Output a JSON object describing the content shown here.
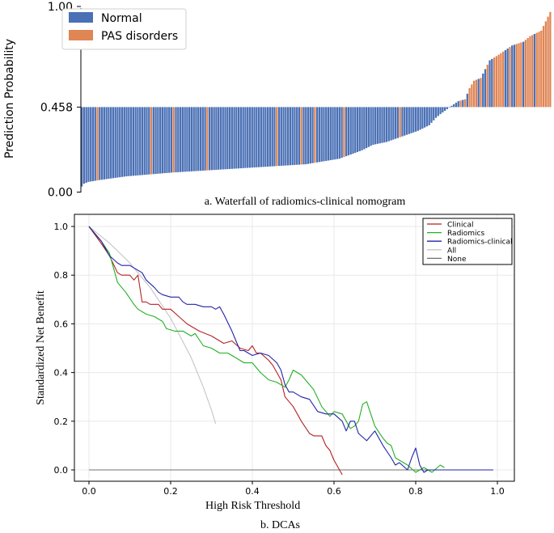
{
  "chart_data": [
    {
      "type": "bar",
      "subtype": "waterfall",
      "ylabel": "Prediction Probability",
      "baseline": 0.458,
      "ylim": [
        0.0,
        1.0
      ],
      "yticks": [
        "0.00",
        "0.458",
        "1.00"
      ],
      "caption": "a. Waterfall of radiomics-clinical nomogram",
      "legend": [
        {
          "label": "Normal",
          "color": "#4a70b5"
        },
        {
          "label": "PAS disorders",
          "color": "#e08554"
        }
      ],
      "legend_position": "top-left",
      "n_bars": 210,
      "anchors": [
        [
          0,
          0.03
        ],
        [
          1,
          0.045
        ],
        [
          3,
          0.055
        ],
        [
          8,
          0.065
        ],
        [
          20,
          0.085
        ],
        [
          40,
          0.105
        ],
        [
          60,
          0.12
        ],
        [
          80,
          0.135
        ],
        [
          100,
          0.15
        ],
        [
          115,
          0.18
        ],
        [
          125,
          0.225
        ],
        [
          130,
          0.255
        ],
        [
          136,
          0.27
        ],
        [
          143,
          0.3
        ],
        [
          150,
          0.33
        ],
        [
          155,
          0.36
        ],
        [
          158,
          0.4
        ],
        [
          160,
          0.42
        ],
        [
          163,
          0.447
        ],
        [
          165,
          0.465
        ],
        [
          168,
          0.49
        ],
        [
          171,
          0.5
        ],
        [
          173,
          0.56
        ],
        [
          175,
          0.6
        ],
        [
          178,
          0.615
        ],
        [
          182,
          0.71
        ],
        [
          186,
          0.74
        ],
        [
          192,
          0.79
        ],
        [
          197,
          0.81
        ],
        [
          200,
          0.84
        ],
        [
          205,
          0.87
        ],
        [
          209,
          0.97
        ]
      ],
      "pas_bars": [
        7,
        31,
        41,
        56,
        87,
        98,
        104,
        117,
        142,
        169,
        171,
        173,
        174,
        175,
        176,
        178,
        181,
        184,
        185,
        186,
        187,
        188,
        191,
        194,
        195,
        196,
        198,
        199,
        200,
        201,
        203,
        204,
        205,
        206,
        207,
        208,
        209
      ]
    },
    {
      "type": "line",
      "title": "",
      "xlabel": "High Risk Threshold",
      "ylabel": "Standardized Net Benefit",
      "xlim": [
        0.0,
        1.0
      ],
      "ylim": [
        0.0,
        1.0
      ],
      "xticks": [
        "0.0",
        "0.2",
        "0.4",
        "0.6",
        "0.8",
        "1.0"
      ],
      "yticks": [
        "0.0",
        "0.2",
        "0.4",
        "0.6",
        "0.8",
        "1.0"
      ],
      "caption": "b. DCAs",
      "legend_position": "top-right",
      "grid": true,
      "series": [
        {
          "name": "Clinical",
          "color": "#b22222",
          "x": [
            0.0,
            0.03,
            0.05,
            0.07,
            0.08,
            0.1,
            0.11,
            0.12,
            0.13,
            0.14,
            0.15,
            0.17,
            0.18,
            0.2,
            0.22,
            0.24,
            0.27,
            0.3,
            0.33,
            0.35,
            0.37,
            0.39,
            0.4,
            0.41,
            0.42,
            0.44,
            0.45,
            0.47,
            0.48,
            0.5,
            0.51,
            0.52,
            0.54,
            0.55,
            0.57,
            0.58,
            0.59,
            0.6,
            0.61,
            0.62
          ],
          "values": [
            1.0,
            0.93,
            0.88,
            0.81,
            0.8,
            0.8,
            0.78,
            0.8,
            0.69,
            0.69,
            0.68,
            0.68,
            0.66,
            0.66,
            0.63,
            0.6,
            0.57,
            0.55,
            0.52,
            0.53,
            0.5,
            0.49,
            0.51,
            0.48,
            0.48,
            0.45,
            0.43,
            0.37,
            0.3,
            0.26,
            0.23,
            0.2,
            0.15,
            0.14,
            0.14,
            0.1,
            0.08,
            0.04,
            0.01,
            -0.02
          ]
        },
        {
          "name": "Radiomics",
          "color": "#22b022",
          "x": [
            0.0,
            0.03,
            0.05,
            0.07,
            0.09,
            0.11,
            0.12,
            0.14,
            0.16,
            0.18,
            0.19,
            0.21,
            0.23,
            0.25,
            0.26,
            0.28,
            0.3,
            0.32,
            0.34,
            0.36,
            0.38,
            0.4,
            0.41,
            0.42,
            0.44,
            0.46,
            0.48,
            0.49,
            0.5,
            0.51,
            0.52,
            0.54,
            0.55,
            0.57,
            0.59,
            0.6,
            0.62,
            0.64,
            0.65,
            0.66,
            0.67,
            0.68,
            0.7,
            0.72,
            0.73,
            0.74,
            0.75,
            0.76,
            0.78,
            0.8,
            0.82,
            0.84,
            0.86,
            0.87
          ],
          "values": [
            1.0,
            0.94,
            0.89,
            0.77,
            0.73,
            0.68,
            0.66,
            0.64,
            0.63,
            0.61,
            0.58,
            0.57,
            0.57,
            0.55,
            0.56,
            0.51,
            0.5,
            0.48,
            0.48,
            0.46,
            0.44,
            0.44,
            0.42,
            0.4,
            0.37,
            0.36,
            0.34,
            0.37,
            0.41,
            0.4,
            0.39,
            0.35,
            0.33,
            0.26,
            0.22,
            0.24,
            0.23,
            0.17,
            0.18,
            0.2,
            0.27,
            0.28,
            0.18,
            0.13,
            0.11,
            0.1,
            0.05,
            0.04,
            0.02,
            -0.01,
            0.01,
            -0.01,
            0.02,
            0.01
          ]
        },
        {
          "name": "Radiomics-clinical",
          "color": "#2222aa",
          "x": [
            0.0,
            0.03,
            0.05,
            0.07,
            0.08,
            0.1,
            0.12,
            0.13,
            0.14,
            0.16,
            0.17,
            0.18,
            0.2,
            0.22,
            0.23,
            0.24,
            0.26,
            0.28,
            0.3,
            0.31,
            0.32,
            0.33,
            0.35,
            0.36,
            0.37,
            0.38,
            0.4,
            0.42,
            0.44,
            0.46,
            0.47,
            0.48,
            0.49,
            0.5,
            0.52,
            0.54,
            0.56,
            0.58,
            0.6,
            0.62,
            0.63,
            0.64,
            0.65,
            0.66,
            0.68,
            0.7,
            0.72,
            0.74,
            0.75,
            0.76,
            0.78,
            0.79,
            0.8,
            0.81,
            0.82,
            0.83,
            0.85,
            0.87,
            0.9,
            0.95,
            0.99
          ],
          "values": [
            1.0,
            0.94,
            0.88,
            0.85,
            0.84,
            0.84,
            0.82,
            0.81,
            0.78,
            0.75,
            0.73,
            0.72,
            0.71,
            0.71,
            0.69,
            0.68,
            0.68,
            0.67,
            0.67,
            0.66,
            0.67,
            0.64,
            0.57,
            0.53,
            0.49,
            0.49,
            0.47,
            0.48,
            0.47,
            0.44,
            0.41,
            0.35,
            0.32,
            0.32,
            0.3,
            0.29,
            0.24,
            0.23,
            0.23,
            0.2,
            0.16,
            0.2,
            0.2,
            0.15,
            0.12,
            0.16,
            0.1,
            0.05,
            0.02,
            0.03,
            0.0,
            0.05,
            0.09,
            0.02,
            -0.01,
            0.0,
            0.0,
            0.0,
            0.0,
            0.0,
            0.0
          ]
        },
        {
          "name": "All",
          "color": "#c4c4c4",
          "x": [
            0.0,
            0.05,
            0.1,
            0.15,
            0.2,
            0.25,
            0.28,
            0.3,
            0.31
          ],
          "values": [
            1.0,
            0.932,
            0.85,
            0.749,
            0.623,
            0.462,
            0.34,
            0.246,
            0.19
          ]
        },
        {
          "name": "None",
          "color": "#707070",
          "x": [
            0.0,
            0.99
          ],
          "values": [
            0.0,
            0.0
          ]
        }
      ]
    }
  ]
}
